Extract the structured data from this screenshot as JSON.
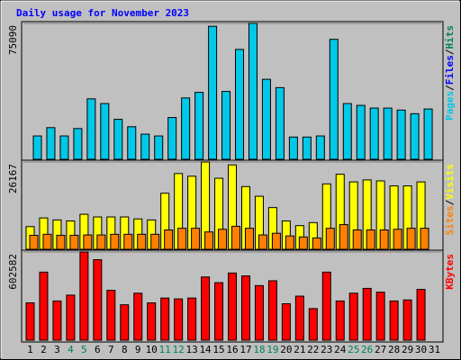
{
  "chart_data": [
    {
      "type": "bar",
      "title": "Daily usage for November 2023",
      "legend_separator": "/",
      "ylim": [
        0,
        75090
      ],
      "yticks": [
        75090
      ],
      "series": [
        {
          "name": "Pages",
          "color": "#00c8e8",
          "values": [
            12900,
            17500,
            12900,
            17000,
            33400,
            30800,
            22100,
            18000,
            13900,
            12900,
            23100,
            33900,
            37000,
            73500,
            37500,
            60700,
            75090,
            44200,
            39600,
            12300,
            12300,
            12900,
            66300,
            30800,
            29800,
            28300,
            28300,
            27200,
            25200,
            27800,
            null
          ]
        },
        {
          "name": "Files",
          "color": "#0000ff",
          "values": [
            null,
            null,
            null,
            null,
            null,
            null,
            null,
            null,
            null,
            null,
            null,
            null,
            null,
            null,
            null,
            null,
            null,
            null,
            null,
            null,
            null,
            null,
            null,
            null,
            null,
            null,
            null,
            null,
            null,
            null,
            null
          ]
        },
        {
          "name": "Hits",
          "color": "#00805c",
          "values": [
            null,
            null,
            null,
            null,
            null,
            null,
            null,
            null,
            null,
            null,
            null,
            null,
            null,
            null,
            null,
            null,
            null,
            null,
            null,
            null,
            null,
            null,
            null,
            null,
            null,
            null,
            null,
            null,
            null,
            null,
            null
          ]
        }
      ]
    },
    {
      "type": "bar",
      "legend_separator": "/",
      "ylim": [
        0,
        26167
      ],
      "yticks": [
        26167
      ],
      "series": [
        {
          "name": "Sites",
          "color": "#ff8000",
          "values": [
            4200,
            4500,
            4200,
            4200,
            4300,
            4300,
            4500,
            4500,
            4500,
            4500,
            5800,
            6300,
            6300,
            5200,
            6000,
            6900,
            6300,
            4300,
            4800,
            4000,
            3700,
            3400,
            6300,
            7400,
            5800,
            5800,
            5800,
            6000,
            6300,
            6300,
            null
          ]
        },
        {
          "name": "Visits",
          "color": "#ffff00",
          "values": [
            6800,
            9400,
            8800,
            8500,
            10500,
            9700,
            9700,
            9700,
            9100,
            8800,
            16800,
            22700,
            21900,
            26167,
            21300,
            25300,
            18800,
            15900,
            12500,
            8500,
            7100,
            8000,
            19600,
            22500,
            20200,
            20800,
            20500,
            19000,
            19000,
            20200,
            null
          ]
        }
      ]
    },
    {
      "type": "bar",
      "ylim": [
        0,
        602582
      ],
      "yticks": [
        602582
      ],
      "categories": [
        "1",
        "2",
        "3",
        "4",
        "5",
        "6",
        "7",
        "8",
        "9",
        "10",
        "11",
        "12",
        "13",
        "14",
        "15",
        "16",
        "17",
        "18",
        "19",
        "20",
        "21",
        "22",
        "23",
        "24",
        "25",
        "26",
        "27",
        "28",
        "29",
        "30",
        "31"
      ],
      "category_colors": [
        "#000000",
        "#000000",
        "#000000",
        "#00805c",
        "#00805c",
        "#000000",
        "#000000",
        "#000000",
        "#000000",
        "#000000",
        "#00805c",
        "#00805c",
        "#000000",
        "#000000",
        "#000000",
        "#000000",
        "#000000",
        "#00805c",
        "#00805c",
        "#000000",
        "#000000",
        "#000000",
        "#000000",
        "#000000",
        "#00805c",
        "#00805c",
        "#000000",
        "#000000",
        "#000000",
        "#000000",
        "#000000"
      ],
      "series": [
        {
          "name": "KBytes",
          "color": "#ff0000",
          "values": [
            255000,
            465000,
            268000,
            308000,
            602582,
            550000,
            341000,
            242000,
            321000,
            255000,
            288000,
            282000,
            288000,
            432000,
            393000,
            459000,
            439000,
            373000,
            406000,
            249000,
            301000,
            216000,
            465000,
            268000,
            321000,
            354000,
            328000,
            268000,
            275000,
            347000,
            null
          ]
        }
      ]
    }
  ]
}
